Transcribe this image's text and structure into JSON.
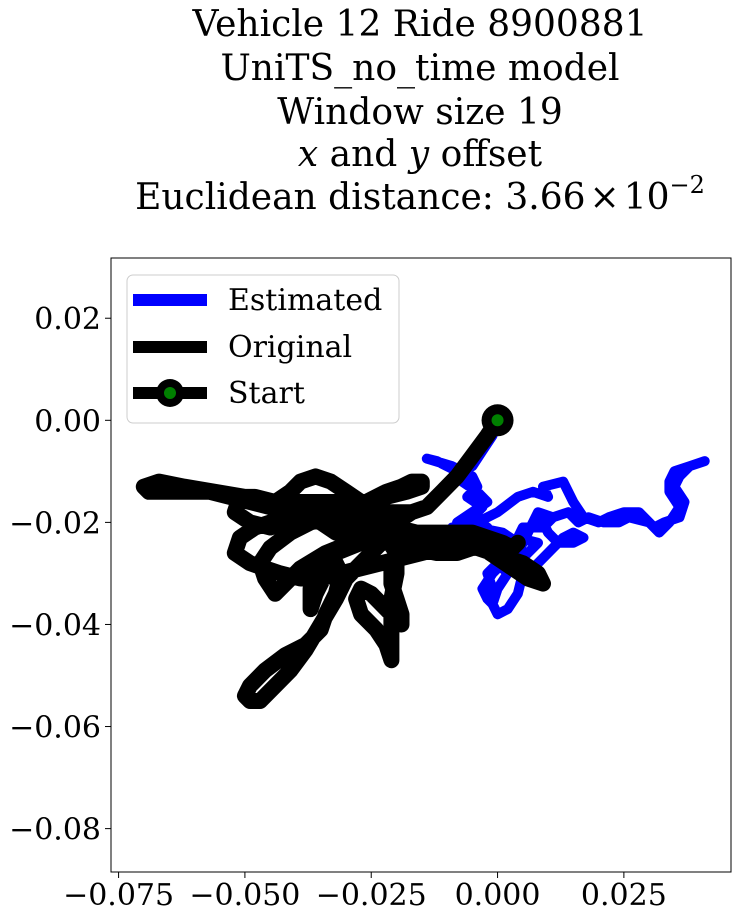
{
  "chart_data": {
    "type": "line",
    "title_lines": [
      "Vehicle 12 Ride 8900881",
      "UniTS_no_time model",
      "Window size 19",
      "x and y offset",
      "Euclidean distance: 3.66 × 10⁻²"
    ],
    "title_math": {
      "line4": {
        "var1": "x",
        "mid": " and ",
        "var2": "y",
        "tail": " offset"
      },
      "line5": {
        "prefix": "Euclidean distance: ",
        "mantissa": "3.66",
        "times": "×",
        "base": "10",
        "exponent": "−2"
      }
    },
    "xlabel": "",
    "ylabel": "",
    "xlim": [
      -0.0765,
      0.0462
    ],
    "ylim": [
      -0.0885,
      0.0318
    ],
    "xticks": [
      -0.075,
      -0.05,
      -0.025,
      0.0,
      0.025
    ],
    "xtick_labels": [
      "−0.075",
      "−0.050",
      "−0.025",
      "0.000",
      "0.025"
    ],
    "yticks": [
      0.02,
      0.0,
      -0.02,
      -0.04,
      -0.06,
      -0.08
    ],
    "ytick_labels": [
      "0.02",
      "0.00",
      "−0.02",
      "−0.04",
      "−0.06",
      "−0.08"
    ],
    "grid": false,
    "legend": {
      "placement": "upper-left",
      "entries": [
        {
          "label": "Estimated",
          "color": "#0000ff"
        },
        {
          "label": "Original",
          "color": "#000000"
        },
        {
          "label": "Start",
          "color": "#000000",
          "marker_color": "#008000"
        }
      ]
    },
    "series": [
      {
        "name": "Estimated",
        "color": "#0000ff",
        "points": [
          [
            0.0,
            0.0
          ],
          [
            -0.001,
            -0.003
          ],
          [
            -0.003,
            -0.006
          ],
          [
            -0.005,
            -0.009
          ],
          [
            -0.008,
            -0.01
          ],
          [
            -0.012,
            -0.008
          ],
          [
            -0.014,
            -0.0075
          ],
          [
            -0.009,
            -0.009
          ],
          [
            -0.005,
            -0.011
          ],
          [
            -0.004,
            -0.013
          ],
          [
            -0.006,
            -0.015
          ],
          [
            -0.003,
            -0.017
          ],
          [
            -0.005,
            -0.019
          ],
          [
            -0.002,
            -0.021
          ],
          [
            -0.006,
            -0.022
          ],
          [
            -0.009,
            -0.021
          ],
          [
            -0.004,
            -0.02
          ],
          [
            0.0,
            -0.018
          ],
          [
            0.004,
            -0.015
          ],
          [
            0.007,
            -0.014
          ],
          [
            0.01,
            -0.015
          ],
          [
            0.009,
            -0.013
          ],
          [
            0.013,
            -0.012
          ],
          [
            0.015,
            -0.016
          ],
          [
            0.017,
            -0.019
          ],
          [
            0.02,
            -0.02
          ],
          [
            0.022,
            -0.019
          ],
          [
            0.025,
            -0.018
          ],
          [
            0.028,
            -0.018
          ],
          [
            0.031,
            -0.021
          ],
          [
            0.033,
            -0.02
          ],
          [
            0.036,
            -0.019
          ],
          [
            0.037,
            -0.016
          ],
          [
            0.035,
            -0.013
          ],
          [
            0.036,
            -0.011
          ],
          [
            0.038,
            -0.009
          ],
          [
            0.041,
            -0.008
          ],
          [
            0.038,
            -0.009
          ],
          [
            0.035,
            -0.01
          ],
          [
            0.034,
            -0.012
          ],
          [
            0.034,
            -0.014
          ],
          [
            0.036,
            -0.017
          ],
          [
            0.034,
            -0.02
          ],
          [
            0.032,
            -0.022
          ],
          [
            0.03,
            -0.02
          ],
          [
            0.026,
            -0.019
          ],
          [
            0.024,
            -0.02
          ],
          [
            0.021,
            -0.02
          ],
          [
            0.018,
            -0.019
          ],
          [
            0.016,
            -0.02
          ],
          [
            0.014,
            -0.018
          ],
          [
            0.011,
            -0.019
          ],
          [
            0.009,
            -0.021
          ],
          [
            0.005,
            -0.021
          ],
          [
            0.004,
            -0.023
          ],
          [
            0.008,
            -0.024
          ],
          [
            0.006,
            -0.026
          ],
          [
            0.004,
            -0.028
          ],
          [
            0.007,
            -0.029
          ],
          [
            0.009,
            -0.027
          ],
          [
            0.011,
            -0.025
          ],
          [
            0.013,
            -0.023
          ],
          [
            0.015,
            -0.022
          ],
          [
            0.017,
            -0.023
          ],
          [
            0.015,
            -0.024
          ],
          [
            0.012,
            -0.024
          ],
          [
            0.01,
            -0.022
          ],
          [
            0.009,
            -0.02
          ],
          [
            0.011,
            -0.019
          ],
          [
            0.008,
            -0.018
          ],
          [
            0.006,
            -0.022
          ],
          [
            0.004,
            -0.026
          ],
          [
            0.005,
            -0.03
          ],
          [
            0.004,
            -0.034
          ],
          [
            0.002,
            -0.037
          ],
          [
            0.0,
            -0.038
          ],
          [
            -0.001,
            -0.036
          ],
          [
            0.0,
            -0.033
          ],
          [
            0.002,
            -0.03
          ],
          [
            0.0,
            -0.028
          ],
          [
            -0.002,
            -0.03
          ],
          [
            -0.001,
            -0.033
          ],
          [
            -0.001,
            -0.036
          ],
          [
            -0.002,
            -0.035
          ],
          [
            -0.003,
            -0.033
          ],
          [
            -0.001,
            -0.03
          ],
          [
            0.002,
            -0.027
          ],
          [
            0.004,
            -0.024
          ],
          [
            0.001,
            -0.022
          ],
          [
            -0.004,
            -0.021
          ],
          [
            -0.008,
            -0.02
          ],
          [
            -0.005,
            -0.018
          ],
          [
            -0.002,
            -0.016
          ],
          [
            -0.004,
            -0.014
          ],
          [
            -0.007,
            -0.012
          ]
        ]
      },
      {
        "name": "Original",
        "color": "#000000",
        "points": [
          [
            0.0,
            0.0
          ],
          [
            -0.002,
            -0.003
          ],
          [
            -0.005,
            -0.007
          ],
          [
            -0.008,
            -0.011
          ],
          [
            -0.011,
            -0.014
          ],
          [
            -0.014,
            -0.017
          ],
          [
            -0.017,
            -0.018
          ],
          [
            -0.02,
            -0.018
          ],
          [
            -0.024,
            -0.018
          ],
          [
            -0.027,
            -0.016
          ],
          [
            -0.03,
            -0.014
          ],
          [
            -0.033,
            -0.012
          ],
          [
            -0.036,
            -0.011
          ],
          [
            -0.039,
            -0.012
          ],
          [
            -0.041,
            -0.014
          ],
          [
            -0.044,
            -0.016
          ],
          [
            -0.048,
            -0.015
          ],
          [
            -0.051,
            -0.015
          ],
          [
            -0.052,
            -0.018
          ],
          [
            -0.049,
            -0.02
          ],
          [
            -0.045,
            -0.021
          ],
          [
            -0.042,
            -0.02
          ],
          [
            -0.038,
            -0.019
          ],
          [
            -0.035,
            -0.02
          ],
          [
            -0.032,
            -0.022
          ],
          [
            -0.028,
            -0.021
          ],
          [
            -0.024,
            -0.019
          ],
          [
            -0.02,
            -0.018
          ],
          [
            -0.017,
            -0.018
          ],
          [
            -0.02,
            -0.02
          ],
          [
            -0.024,
            -0.022
          ],
          [
            -0.029,
            -0.024
          ],
          [
            -0.034,
            -0.026
          ],
          [
            -0.039,
            -0.029
          ],
          [
            -0.042,
            -0.032
          ],
          [
            -0.044,
            -0.034
          ],
          [
            -0.046,
            -0.031
          ],
          [
            -0.047,
            -0.028
          ],
          [
            -0.045,
            -0.025
          ],
          [
            -0.041,
            -0.022
          ],
          [
            -0.037,
            -0.02
          ],
          [
            -0.033,
            -0.019
          ],
          [
            -0.028,
            -0.019
          ],
          [
            -0.024,
            -0.02
          ],
          [
            -0.02,
            -0.021
          ],
          [
            -0.016,
            -0.022
          ],
          [
            -0.012,
            -0.023
          ],
          [
            -0.008,
            -0.024
          ],
          [
            -0.005,
            -0.025
          ],
          [
            -0.008,
            -0.026
          ],
          [
            -0.012,
            -0.026
          ],
          [
            -0.017,
            -0.025
          ],
          [
            -0.022,
            -0.024
          ],
          [
            -0.027,
            -0.024
          ],
          [
            -0.032,
            -0.026
          ],
          [
            -0.036,
            -0.029
          ],
          [
            -0.037,
            -0.033
          ],
          [
            -0.037,
            -0.037
          ],
          [
            -0.036,
            -0.034
          ],
          [
            -0.034,
            -0.03
          ],
          [
            -0.033,
            -0.026
          ],
          [
            -0.031,
            -0.03
          ],
          [
            -0.032,
            -0.034
          ],
          [
            -0.034,
            -0.038
          ],
          [
            -0.035,
            -0.041
          ],
          [
            -0.038,
            -0.044
          ],
          [
            -0.042,
            -0.046
          ],
          [
            -0.046,
            -0.049
          ],
          [
            -0.049,
            -0.052
          ],
          [
            -0.05,
            -0.054
          ],
          [
            -0.049,
            -0.055
          ],
          [
            -0.047,
            -0.055
          ],
          [
            -0.044,
            -0.052
          ],
          [
            -0.041,
            -0.049
          ],
          [
            -0.038,
            -0.045
          ],
          [
            -0.035,
            -0.04
          ],
          [
            -0.032,
            -0.035
          ],
          [
            -0.03,
            -0.031
          ],
          [
            -0.027,
            -0.028
          ],
          [
            -0.024,
            -0.025
          ],
          [
            -0.022,
            -0.023
          ],
          [
            -0.02,
            -0.026
          ],
          [
            -0.02,
            -0.03
          ],
          [
            -0.021,
            -0.035
          ],
          [
            -0.021,
            -0.04
          ],
          [
            -0.021,
            -0.045
          ],
          [
            -0.021,
            -0.047
          ],
          [
            -0.022,
            -0.044
          ],
          [
            -0.024,
            -0.041
          ],
          [
            -0.027,
            -0.038
          ],
          [
            -0.028,
            -0.035
          ],
          [
            -0.027,
            -0.033
          ],
          [
            -0.025,
            -0.034
          ],
          [
            -0.023,
            -0.036
          ],
          [
            -0.021,
            -0.038
          ],
          [
            -0.019,
            -0.04
          ],
          [
            -0.019,
            -0.038
          ],
          [
            -0.02,
            -0.035
          ],
          [
            -0.021,
            -0.032
          ],
          [
            -0.021,
            -0.029
          ],
          [
            -0.02,
            -0.027
          ],
          [
            -0.018,
            -0.026
          ],
          [
            -0.015,
            -0.025
          ],
          [
            -0.012,
            -0.024
          ],
          [
            -0.009,
            -0.024
          ],
          [
            -0.006,
            -0.024
          ],
          [
            -0.003,
            -0.025
          ],
          [
            0.0,
            -0.027
          ],
          [
            0.003,
            -0.029
          ],
          [
            0.006,
            -0.031
          ],
          [
            0.009,
            -0.032
          ],
          [
            0.008,
            -0.03
          ],
          [
            0.005,
            -0.028
          ],
          [
            0.002,
            -0.027
          ],
          [
            -0.001,
            -0.026
          ],
          [
            -0.004,
            -0.025
          ],
          [
            -0.007,
            -0.025
          ],
          [
            -0.011,
            -0.025
          ],
          [
            -0.015,
            -0.026
          ],
          [
            -0.019,
            -0.027
          ],
          [
            -0.023,
            -0.028
          ],
          [
            -0.027,
            -0.029
          ],
          [
            -0.031,
            -0.03
          ],
          [
            -0.035,
            -0.031
          ],
          [
            -0.039,
            -0.031
          ],
          [
            -0.043,
            -0.03
          ],
          [
            -0.046,
            -0.029
          ],
          [
            -0.049,
            -0.028
          ],
          [
            -0.052,
            -0.026
          ],
          [
            -0.051,
            -0.023
          ],
          [
            -0.048,
            -0.021
          ],
          [
            -0.045,
            -0.02
          ],
          [
            -0.042,
            -0.019
          ],
          [
            -0.038,
            -0.019
          ],
          [
            -0.034,
            -0.018
          ],
          [
            -0.03,
            -0.017
          ],
          [
            -0.026,
            -0.016
          ],
          [
            -0.022,
            -0.014
          ],
          [
            -0.019,
            -0.013
          ],
          [
            -0.017,
            -0.012
          ],
          [
            -0.015,
            -0.012
          ],
          [
            -0.015,
            -0.013
          ],
          [
            -0.018,
            -0.014
          ],
          [
            -0.022,
            -0.015
          ],
          [
            -0.026,
            -0.016
          ],
          [
            -0.03,
            -0.016
          ],
          [
            -0.034,
            -0.016
          ],
          [
            -0.039,
            -0.016
          ],
          [
            -0.044,
            -0.016
          ],
          [
            -0.05,
            -0.015
          ],
          [
            -0.056,
            -0.014
          ],
          [
            -0.062,
            -0.013
          ],
          [
            -0.067,
            -0.012
          ],
          [
            -0.07,
            -0.013
          ],
          [
            -0.069,
            -0.014
          ],
          [
            -0.065,
            -0.014
          ],
          [
            -0.061,
            -0.014
          ],
          [
            -0.057,
            -0.014
          ],
          [
            -0.053,
            -0.015
          ],
          [
            -0.049,
            -0.016
          ],
          [
            -0.045,
            -0.017
          ],
          [
            -0.041,
            -0.017
          ],
          [
            -0.037,
            -0.018
          ],
          [
            -0.033,
            -0.019
          ],
          [
            -0.029,
            -0.02
          ],
          [
            -0.025,
            -0.021
          ],
          [
            -0.021,
            -0.022
          ],
          [
            -0.017,
            -0.022
          ],
          [
            -0.013,
            -0.022
          ],
          [
            -0.009,
            -0.022
          ],
          [
            -0.005,
            -0.022
          ],
          [
            -0.002,
            -0.023
          ],
          [
            0.001,
            -0.024
          ],
          [
            0.003,
            -0.025
          ],
          [
            0.004,
            -0.024
          ]
        ]
      }
    ],
    "start_point": {
      "name": "Start",
      "x": 0.0,
      "y": 0.0,
      "color": "#008000"
    }
  }
}
